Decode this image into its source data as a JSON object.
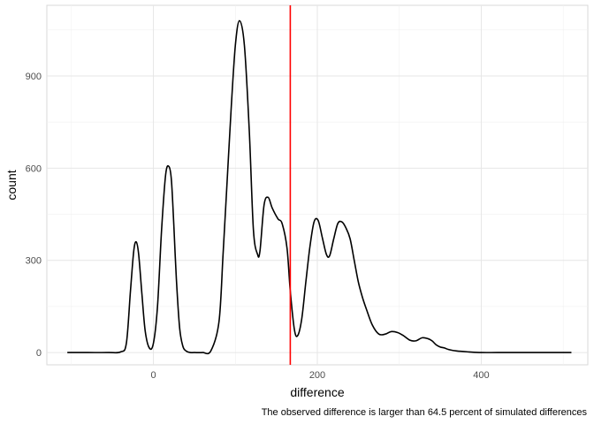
{
  "chart_data": {
    "type": "line",
    "xlabel": "difference",
    "ylabel": "count",
    "caption": "The observed difference is larger than 64.5 percent of simulated differences",
    "xlim": [
      -130,
      530
    ],
    "ylim": [
      -40,
      1130
    ],
    "x_ticks": [
      0,
      200,
      400
    ],
    "x_tick_labels": [
      "0",
      "200",
      "400"
    ],
    "y_ticks": [
      0,
      300,
      600,
      900
    ],
    "y_tick_labels": [
      "0",
      "300",
      "600",
      "900"
    ],
    "x_minor": [
      -100,
      100,
      300,
      500
    ],
    "y_minor": [
      150,
      450,
      750,
      1050
    ],
    "grid": true,
    "theme": "minimal",
    "series": [
      {
        "color": "#000000",
        "x": [
          -105,
          -80,
          -55,
          -40,
          -33,
          -28,
          -24,
          -21,
          -18,
          -14,
          -10,
          -5,
          0,
          5,
          10,
          15,
          19,
          22,
          25,
          28,
          32,
          36,
          40,
          45,
          50,
          60,
          70,
          80,
          85,
          90,
          95,
          100,
          105,
          111,
          117,
          122,
          127,
          130,
          135,
          140,
          145,
          152,
          157,
          163,
          167,
          172,
          176,
          181,
          186,
          191,
          196,
          201,
          206,
          211,
          215,
          220,
          225,
          230,
          235,
          240,
          245,
          250,
          255,
          260,
          267,
          275,
          283,
          290,
          298,
          305,
          313,
          320,
          328,
          335,
          340,
          345,
          350,
          355,
          360,
          370,
          385,
          400,
          420,
          450,
          480,
          510
        ],
        "y": [
          0,
          0,
          0,
          2,
          30,
          200,
          330,
          360,
          320,
          190,
          70,
          15,
          30,
          150,
          400,
          580,
          605,
          560,
          410,
          240,
          80,
          20,
          5,
          0,
          0,
          0,
          5,
          100,
          320,
          560,
          800,
          1000,
          1080,
          1000,
          720,
          400,
          320,
          330,
          480,
          505,
          470,
          435,
          420,
          340,
          200,
          75,
          55,
          110,
          230,
          345,
          425,
          430,
          375,
          320,
          315,
          370,
          420,
          425,
          405,
          370,
          300,
          230,
          180,
          140,
          90,
          60,
          60,
          68,
          65,
          55,
          40,
          38,
          48,
          45,
          38,
          25,
          18,
          15,
          10,
          5,
          2,
          0,
          0,
          0,
          0,
          0
        ]
      }
    ],
    "annotations": [
      {
        "type": "vline",
        "x": 167,
        "color": "#ff0000"
      }
    ]
  }
}
